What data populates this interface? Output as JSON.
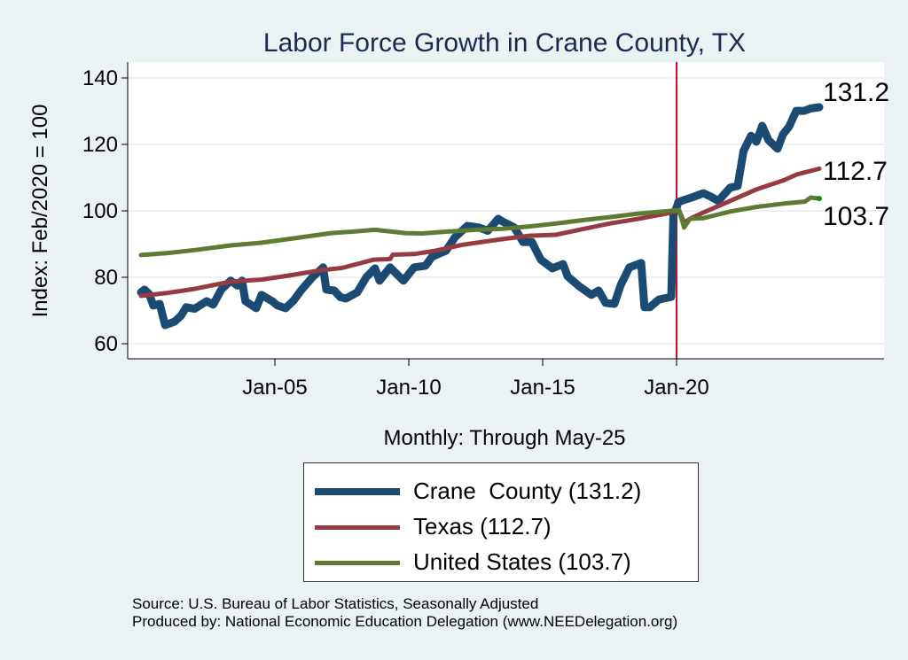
{
  "chart_data": {
    "type": "line",
    "title": "Labor Force Growth in Crane  County, TX",
    "xlabel": "Monthly: Through May-25",
    "ylabel": "Index: Feb/2020 = 100",
    "ylim": [
      56,
      145
    ],
    "xlim": [
      1999.5,
      2028.0
    ],
    "yticks": [
      60,
      80,
      100,
      120,
      140
    ],
    "xticks": [
      {
        "value": 2005.0,
        "label": "Jan-05"
      },
      {
        "value": 2010.0,
        "label": "Jan-10"
      },
      {
        "value": 2015.0,
        "label": "Jan-15"
      },
      {
        "value": 2020.0,
        "label": "Jan-20"
      }
    ],
    "grid": "horizontal",
    "reference_line": {
      "x": 2020.0,
      "color": "#c8102e"
    },
    "legend_position": "bottom",
    "series": [
      {
        "name": "Crane  County (131.2)",
        "key": "crane",
        "color": "#1b4a73",
        "end_label": "131.2",
        "points": [
          [
            2000.0,
            75.5
          ],
          [
            2000.13,
            76.3
          ],
          [
            2000.3,
            75.0
          ],
          [
            2000.46,
            71.5
          ],
          [
            2000.7,
            72.0
          ],
          [
            2000.9,
            65.6
          ],
          [
            2001.26,
            66.7
          ],
          [
            2001.5,
            68.5
          ],
          [
            2001.69,
            71.0
          ],
          [
            2002.0,
            70.5
          ],
          [
            2002.45,
            72.8
          ],
          [
            2002.7,
            71.8
          ],
          [
            2003.0,
            76.3
          ],
          [
            2003.35,
            79.0
          ],
          [
            2003.6,
            77.5
          ],
          [
            2003.77,
            79.0
          ],
          [
            2003.9,
            72.8
          ],
          [
            2004.3,
            70.7
          ],
          [
            2004.5,
            74.7
          ],
          [
            2004.9,
            72.8
          ],
          [
            2005.1,
            71.5
          ],
          [
            2005.4,
            70.7
          ],
          [
            2005.7,
            73.0
          ],
          [
            2006.0,
            76.3
          ],
          [
            2006.4,
            80.0
          ],
          [
            2006.8,
            83.0
          ],
          [
            2006.92,
            76.3
          ],
          [
            2007.22,
            76.0
          ],
          [
            2007.45,
            74.0
          ],
          [
            2007.65,
            73.6
          ],
          [
            2008.08,
            75.5
          ],
          [
            2008.41,
            80.0
          ],
          [
            2008.74,
            82.7
          ],
          [
            2008.91,
            79.0
          ],
          [
            2009.3,
            83.0
          ],
          [
            2009.55,
            81.0
          ],
          [
            2009.8,
            79.0
          ],
          [
            2010.2,
            83.0
          ],
          [
            2010.63,
            83.5
          ],
          [
            2010.86,
            86.1
          ],
          [
            2011.1,
            87.0
          ],
          [
            2011.39,
            88.0
          ],
          [
            2011.72,
            92.0
          ],
          [
            2012.19,
            95.5
          ],
          [
            2012.62,
            95.0
          ],
          [
            2012.95,
            94.0
          ],
          [
            2013.34,
            97.6
          ],
          [
            2013.5,
            96.8
          ],
          [
            2013.94,
            95.0
          ],
          [
            2014.27,
            90.6
          ],
          [
            2014.6,
            90.6
          ],
          [
            2014.93,
            85.3
          ],
          [
            2015.36,
            82.7
          ],
          [
            2015.76,
            84.0
          ],
          [
            2015.93,
            80.3
          ],
          [
            2016.36,
            77.3
          ],
          [
            2016.82,
            74.7
          ],
          [
            2017.09,
            76.0
          ],
          [
            2017.35,
            72.3
          ],
          [
            2017.68,
            72.0
          ],
          [
            2017.91,
            77.6
          ],
          [
            2018.24,
            83.0
          ],
          [
            2018.68,
            84.3
          ],
          [
            2018.8,
            71.0
          ],
          [
            2019.0,
            71.0
          ],
          [
            2019.34,
            73.3
          ],
          [
            2019.8,
            74.1
          ],
          [
            2019.88,
            98.7
          ],
          [
            2020.0,
            101.0
          ],
          [
            2020.07,
            102.7
          ],
          [
            2020.56,
            104.0
          ],
          [
            2021.0,
            105.3
          ],
          [
            2021.3,
            104.2
          ],
          [
            2021.56,
            103.0
          ],
          [
            2022.0,
            107.0
          ],
          [
            2022.28,
            107.5
          ],
          [
            2022.5,
            118.0
          ],
          [
            2022.78,
            122.6
          ],
          [
            2022.98,
            120.8
          ],
          [
            2023.2,
            125.6
          ],
          [
            2023.43,
            121.3
          ],
          [
            2023.77,
            118.7
          ],
          [
            2023.97,
            123.0
          ],
          [
            2024.2,
            125.3
          ],
          [
            2024.47,
            130.1
          ],
          [
            2024.77,
            130.1
          ],
          [
            2025.0,
            130.8
          ],
          [
            2025.33,
            131.2
          ]
        ]
      },
      {
        "name": "Texas (112.7)",
        "key": "texas",
        "color": "#973b42",
        "end_label": "112.7",
        "points": [
          [
            2000.0,
            74.4
          ],
          [
            2001.0,
            75.3
          ],
          [
            2002.0,
            76.5
          ],
          [
            2003.35,
            78.7
          ],
          [
            2004.5,
            79.3
          ],
          [
            2005.5,
            80.5
          ],
          [
            2006.7,
            82.1
          ],
          [
            2007.5,
            82.8
          ],
          [
            2008.7,
            85.3
          ],
          [
            2009.3,
            85.5
          ],
          [
            2009.4,
            86.8
          ],
          [
            2010.2,
            87.0
          ],
          [
            2011.0,
            88.0
          ],
          [
            2012.0,
            89.8
          ],
          [
            2013.5,
            91.5
          ],
          [
            2014.5,
            92.5
          ],
          [
            2015.5,
            92.8
          ],
          [
            2016.5,
            94.5
          ],
          [
            2017.5,
            96.2
          ],
          [
            2018.5,
            97.5
          ],
          [
            2019.5,
            99.0
          ],
          [
            2020.1,
            100.0
          ],
          [
            2020.28,
            96.5
          ],
          [
            2020.6,
            98.0
          ],
          [
            2021.0,
            99.5
          ],
          [
            2022.0,
            103.0
          ],
          [
            2023.0,
            106.5
          ],
          [
            2024.0,
            109.2
          ],
          [
            2024.5,
            111.0
          ],
          [
            2025.33,
            112.7
          ]
        ]
      },
      {
        "name": "United States (103.7)",
        "key": "us",
        "color": "#5e7b32",
        "end_label": "103.7",
        "points": [
          [
            2000.0,
            86.7
          ],
          [
            2001.0,
            87.3
          ],
          [
            2002.0,
            88.2
          ],
          [
            2003.35,
            89.6
          ],
          [
            2004.5,
            90.4
          ],
          [
            2005.5,
            91.5
          ],
          [
            2007.1,
            93.3
          ],
          [
            2008.0,
            93.8
          ],
          [
            2008.74,
            94.3
          ],
          [
            2009.87,
            93.3
          ],
          [
            2010.5,
            93.2
          ],
          [
            2011.5,
            93.8
          ],
          [
            2012.5,
            94.3
          ],
          [
            2013.5,
            94.6
          ],
          [
            2014.5,
            95.3
          ],
          [
            2015.5,
            96.2
          ],
          [
            2016.5,
            97.2
          ],
          [
            2017.5,
            98.1
          ],
          [
            2018.5,
            99.1
          ],
          [
            2019.5,
            99.8
          ],
          [
            2020.1,
            100.2
          ],
          [
            2020.28,
            95.0
          ],
          [
            2020.5,
            97.6
          ],
          [
            2021.0,
            97.8
          ],
          [
            2021.5,
            98.8
          ],
          [
            2022.0,
            99.8
          ],
          [
            2023.0,
            101.2
          ],
          [
            2024.0,
            102.2
          ],
          [
            2024.8,
            102.8
          ],
          [
            2025.0,
            104.0
          ],
          [
            2025.33,
            103.7
          ]
        ]
      }
    ]
  },
  "legend": {
    "items": [
      {
        "label": "Crane  County (131.2)",
        "color": "#1b4a73"
      },
      {
        "label": "Texas (112.7)",
        "color": "#973b42"
      },
      {
        "label": "United States (103.7)",
        "color": "#5e7b32"
      }
    ]
  },
  "footer": {
    "source": "Source: U.S. Bureau of Labor Statistics, Seasonally Adjusted",
    "produced_by": "Produced by: National Economic Education Delegation (www.NEEDelegation.org)"
  }
}
